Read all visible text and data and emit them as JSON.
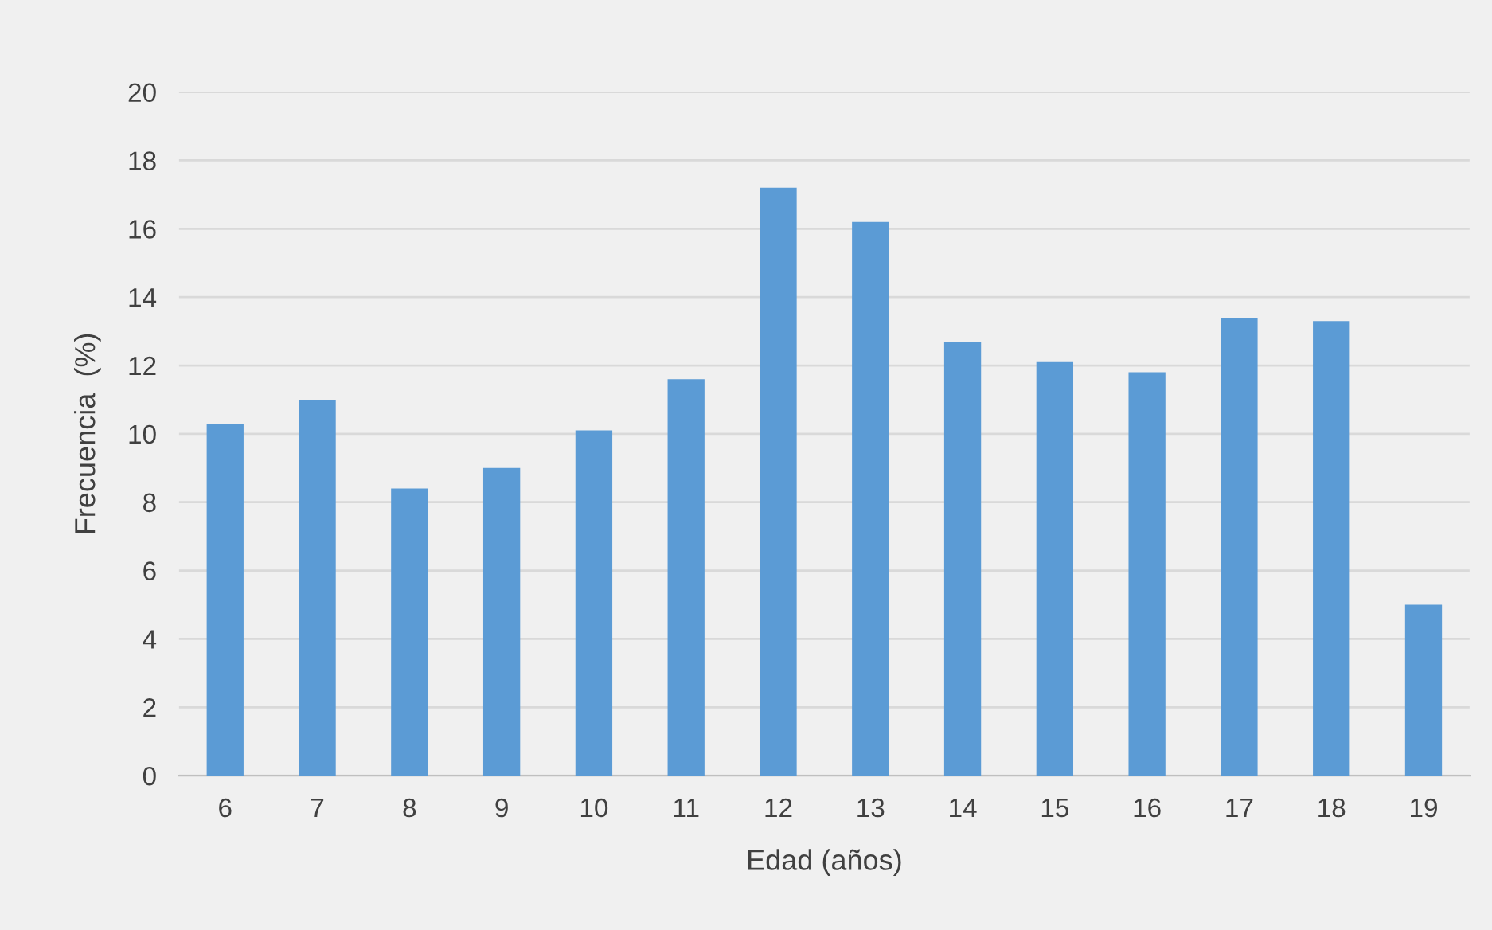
{
  "chart_data": {
    "type": "bar",
    "xlabel": "Edad (años)",
    "ylabel": "Frecuencia  (%)",
    "categories": [
      "6",
      "7",
      "8",
      "9",
      "10",
      "11",
      "12",
      "13",
      "14",
      "15",
      "16",
      "17",
      "18",
      "19"
    ],
    "values": [
      10.3,
      11.0,
      8.4,
      9.0,
      10.1,
      11.6,
      17.2,
      16.2,
      12.7,
      12.1,
      11.8,
      13.4,
      13.3,
      5.0
    ],
    "color": "#5b9bd5",
    "ylim": [
      0,
      20
    ],
    "yticks": [
      0,
      2,
      4,
      6,
      8,
      10,
      12,
      14,
      16,
      18,
      20
    ],
    "grid": "y"
  }
}
